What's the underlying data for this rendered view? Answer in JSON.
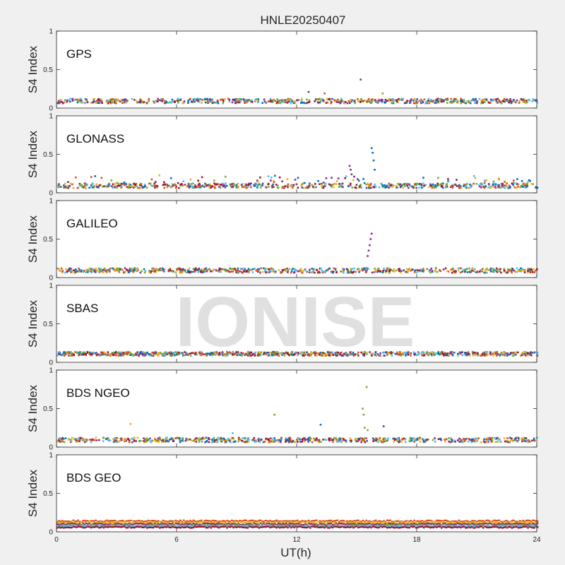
{
  "chart_data": {
    "type": "scatter",
    "title": "HNLE20250407",
    "xlabel": "UT(h)",
    "ylabel": "S4 Index",
    "xlim": [
      0,
      24
    ],
    "ylim": [
      0,
      1
    ],
    "xticks": [
      0,
      6,
      12,
      18,
      24
    ],
    "yticks": [
      0,
      0.5,
      1
    ],
    "grid": false,
    "watermark": "IONISE",
    "colors": [
      "#0072bd",
      "#d95319",
      "#edb120",
      "#7e2f8e",
      "#77ac30",
      "#4dbeee",
      "#a2142f"
    ],
    "panels": [
      {
        "label": "GPS",
        "spikes": [
          {
            "x": 15.2,
            "y": 0.37,
            "color": "#7e2f8e"
          },
          {
            "x": 12.6,
            "y": 0.21,
            "color": "#7e2f8e"
          },
          {
            "x": 16.3,
            "y": 0.19,
            "color": "#77ac30"
          },
          {
            "x": 13.4,
            "y": 0.19,
            "color": "#d95319"
          }
        ]
      },
      {
        "label": "GLONASS",
        "spikes": [
          {
            "x": 15.75,
            "y": 0.58,
            "color": "#0072bd"
          },
          {
            "x": 15.8,
            "y": 0.52,
            "color": "#0072bd"
          },
          {
            "x": 15.85,
            "y": 0.42,
            "color": "#0072bd"
          },
          {
            "x": 15.9,
            "y": 0.3,
            "color": "#0072bd"
          },
          {
            "x": 14.65,
            "y": 0.35,
            "color": "#7e2f8e"
          },
          {
            "x": 14.7,
            "y": 0.3,
            "color": "#7e2f8e"
          },
          {
            "x": 14.75,
            "y": 0.24,
            "color": "#7e2f8e"
          }
        ]
      },
      {
        "label": "GALILEO",
        "spikes": [
          {
            "x": 15.75,
            "y": 0.57,
            "color": "#7e2f8e"
          },
          {
            "x": 15.7,
            "y": 0.5,
            "color": "#7e2f8e"
          },
          {
            "x": 15.65,
            "y": 0.42,
            "color": "#7e2f8e"
          },
          {
            "x": 15.6,
            "y": 0.35,
            "color": "#7e2f8e"
          },
          {
            "x": 15.55,
            "y": 0.28,
            "color": "#7e2f8e"
          }
        ]
      },
      {
        "label": "SBAS",
        "spikes": []
      },
      {
        "label": "BDS NGEO",
        "spikes": [
          {
            "x": 15.5,
            "y": 0.78,
            "color": "#77ac30"
          },
          {
            "x": 15.3,
            "y": 0.5,
            "color": "#77ac30"
          },
          {
            "x": 15.35,
            "y": 0.42,
            "color": "#77ac30"
          },
          {
            "x": 15.4,
            "y": 0.25,
            "color": "#77ac30"
          },
          {
            "x": 15.55,
            "y": 0.22,
            "color": "#77ac30"
          },
          {
            "x": 10.9,
            "y": 0.42,
            "color": "#77ac30"
          },
          {
            "x": 16.35,
            "y": 0.27,
            "color": "#7e2f8e"
          },
          {
            "x": 3.7,
            "y": 0.3,
            "color": "#edb120"
          },
          {
            "x": 13.2,
            "y": 0.29,
            "color": "#0072bd"
          },
          {
            "x": 8.8,
            "y": 0.18,
            "color": "#4dbeee"
          }
        ]
      },
      {
        "label": "BDS GEO",
        "spikes": []
      }
    ]
  }
}
